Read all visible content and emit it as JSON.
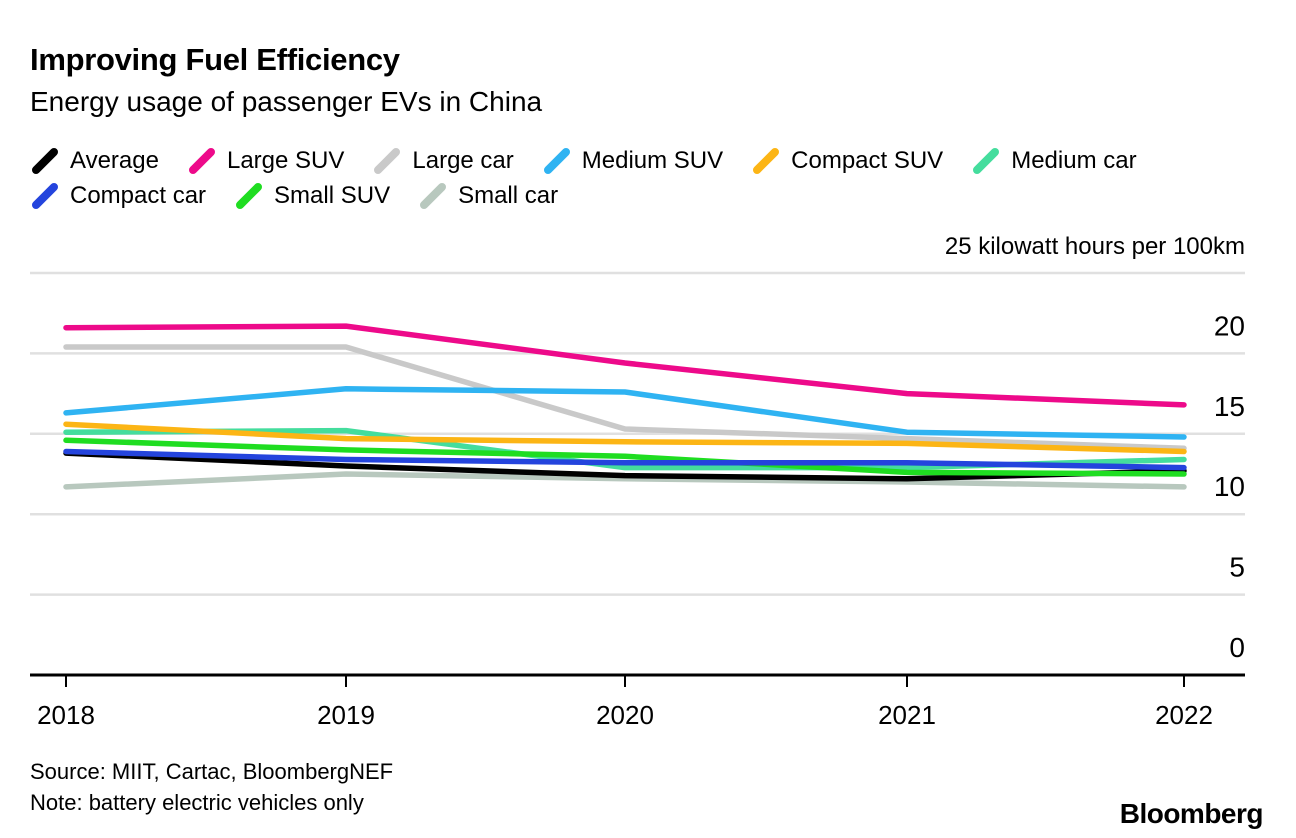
{
  "title": "Improving Fuel Efficiency",
  "subtitle": "Energy usage of passenger EVs in China",
  "axis_unit_label": "25 kilowatt hours per 100km",
  "source": "Source: MIIT, Cartac, BloombergNEF",
  "note": "Note: battery electric vehicles only",
  "logo": "Bloomberg",
  "colors": {
    "background": "#ffffff",
    "text": "#000000",
    "gridline": "#e0e0e0",
    "axis": "#000000"
  },
  "chart_data": {
    "type": "line",
    "x": [
      2018,
      2019,
      2020,
      2021,
      2022
    ],
    "series": [
      {
        "name": "Average",
        "color": "#000000",
        "values": [
          13.8,
          13.0,
          12.4,
          12.2,
          12.7
        ]
      },
      {
        "name": "Large SUV",
        "color": "#ed0a8a",
        "values": [
          21.6,
          21.7,
          19.4,
          17.5,
          16.8
        ]
      },
      {
        "name": "Large car",
        "color": "#c9c9c9",
        "values": [
          20.4,
          20.4,
          15.3,
          14.7,
          14.1
        ]
      },
      {
        "name": "Medium SUV",
        "color": "#2fb3f2",
        "values": [
          16.3,
          17.8,
          17.6,
          15.1,
          14.8
        ]
      },
      {
        "name": "Compact SUV",
        "color": "#fcb515",
        "values": [
          15.6,
          14.7,
          14.5,
          14.4,
          13.9
        ]
      },
      {
        "name": "Medium car",
        "color": "#44dd9d",
        "values": [
          15.1,
          15.2,
          12.9,
          12.9,
          13.4
        ]
      },
      {
        "name": "Compact car",
        "color": "#2444dd",
        "values": [
          13.9,
          13.4,
          13.2,
          13.2,
          12.9
        ]
      },
      {
        "name": "Small SUV",
        "color": "#1fdd21",
        "values": [
          14.6,
          14.0,
          13.6,
          12.6,
          12.5
        ]
      },
      {
        "name": "Small car",
        "color": "#b8c8be",
        "values": [
          11.7,
          12.5,
          12.2,
          12.0,
          11.7
        ]
      }
    ],
    "legend_rows": [
      [
        0,
        1,
        2,
        3,
        4,
        5
      ],
      [
        6,
        7,
        8
      ]
    ],
    "draw_order": [
      8,
      2,
      5,
      4,
      3,
      0,
      7,
      6,
      1
    ],
    "title": "Improving Fuel Efficiency",
    "subtitle": "Energy usage of passenger EVs in China",
    "ylabel": "25 kilowatt hours per 100km",
    "yticks": [
      0,
      5,
      10,
      15,
      20
    ],
    "ylim": [
      0,
      25
    ],
    "grid": true,
    "legend_position": "top"
  }
}
